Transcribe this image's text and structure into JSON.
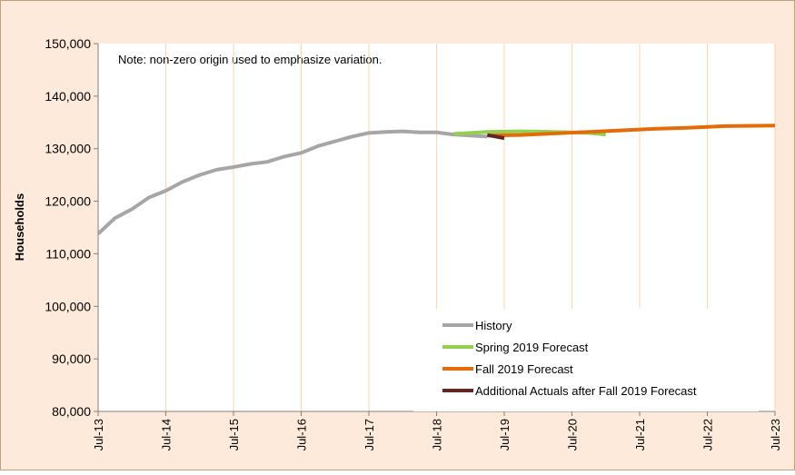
{
  "chart_data": {
    "type": "line",
    "y_label": "Households",
    "annotation": "Note: non-zero origin used to emphasize variation.",
    "xlim": [
      2013.5,
      2023.5
    ],
    "xticks": [
      {
        "value": 2013.5,
        "label": "Jul-13"
      },
      {
        "value": 2014.5,
        "label": "Jul-14"
      },
      {
        "value": 2015.5,
        "label": "Jul-15"
      },
      {
        "value": 2016.5,
        "label": "Jul-16"
      },
      {
        "value": 2017.5,
        "label": "Jul-17"
      },
      {
        "value": 2018.5,
        "label": "Jul-18"
      },
      {
        "value": 2019.5,
        "label": "Jul-19"
      },
      {
        "value": 2020.5,
        "label": "Jul-20"
      },
      {
        "value": 2021.5,
        "label": "Jul-21"
      },
      {
        "value": 2022.5,
        "label": "Jul-22"
      },
      {
        "value": 2023.5,
        "label": "Jul-23"
      }
    ],
    "ylim": [
      80000,
      150000
    ],
    "yticks": [
      {
        "value": 80000,
        "label": "80,000"
      },
      {
        "value": 90000,
        "label": "90,000"
      },
      {
        "value": 100000,
        "label": "100,000"
      },
      {
        "value": 110000,
        "label": "110,000"
      },
      {
        "value": 120000,
        "label": "120,000"
      },
      {
        "value": 130000,
        "label": "130,000"
      },
      {
        "value": 140000,
        "label": "140,000"
      },
      {
        "value": 150000,
        "label": "150,000"
      }
    ],
    "grid": "x",
    "legend": "lower right",
    "series": [
      {
        "name": "History",
        "color": "#a6a6a6",
        "x": [
          2013.5,
          2013.75,
          2014.0,
          2014.25,
          2014.5,
          2014.75,
          2015.0,
          2015.25,
          2015.5,
          2015.75,
          2016.0,
          2016.25,
          2016.5,
          2016.75,
          2017.0,
          2017.25,
          2017.5,
          2017.75,
          2018.0,
          2018.25,
          2018.5,
          2018.75,
          2019.0,
          2019.25
        ],
        "values": [
          113800,
          116800,
          118500,
          120700,
          122000,
          123700,
          125000,
          126000,
          126500,
          127100,
          127500,
          128500,
          129200,
          130500,
          131400,
          132300,
          133000,
          133200,
          133300,
          133100,
          133100,
          132700,
          132500,
          132300
        ]
      },
      {
        "name": "Spring 2019 Forecast",
        "color": "#92d050",
        "x": [
          2018.75,
          2019.25,
          2019.75,
          2020.25,
          2020.75,
          2021.0
        ],
        "values": [
          132800,
          133200,
          133300,
          133200,
          133000,
          132700
        ]
      },
      {
        "name": "Fall 2019 Forecast",
        "color": "#e36c09",
        "x": [
          2019.25,
          2019.75,
          2020.25,
          2020.75,
          2021.25,
          2021.75,
          2022.25,
          2022.75,
          2023.5
        ],
        "values": [
          132500,
          132600,
          132900,
          133200,
          133500,
          133800,
          134000,
          134300,
          134400
        ]
      },
      {
        "name": "Additional Actuals after Fall 2019 Forecast",
        "color": "#632523",
        "x": [
          2019.25,
          2019.5
        ],
        "values": [
          132600,
          132000
        ]
      }
    ]
  }
}
